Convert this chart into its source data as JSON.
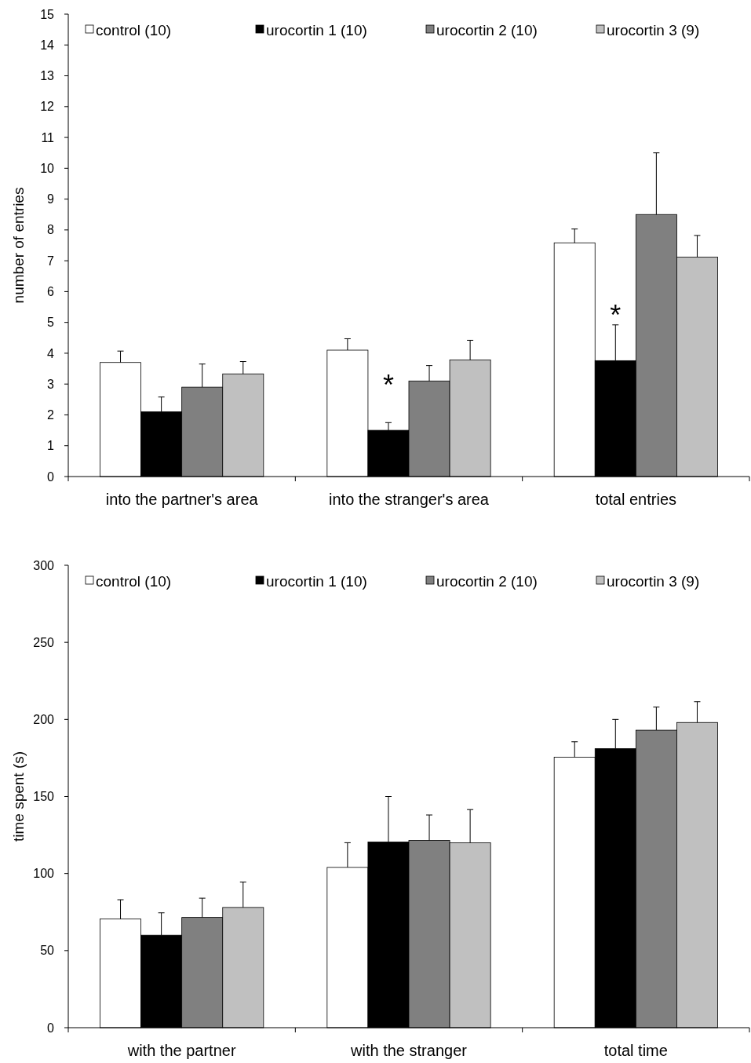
{
  "chart_data": [
    {
      "type": "bar",
      "ylabel": "number of entries",
      "categories": [
        "into the partner's area",
        "into the stranger's area",
        "total entries"
      ],
      "series": [
        {
          "name": "control (10)",
          "color": "#ffffff",
          "values": [
            3.7,
            4.1,
            7.58
          ],
          "errors": [
            0.37,
            0.37,
            0.45
          ]
        },
        {
          "name": "urocortin 1 (10)",
          "color": "#000000",
          "values": [
            2.1,
            1.5,
            3.76
          ],
          "errors": [
            0.48,
            0.25,
            1.16
          ]
        },
        {
          "name": "urocortin 2 (10)",
          "color": "#808080",
          "values": [
            2.9,
            3.1,
            8.5
          ],
          "errors": [
            0.75,
            0.5,
            2.0
          ]
        },
        {
          "name": "urocortin 3 (9)",
          "color": "#c0c0c0",
          "values": [
            3.33,
            3.78,
            7.12
          ],
          "errors": [
            0.4,
            0.64,
            0.7
          ]
        }
      ],
      "ylim": [
        0,
        15
      ],
      "yticks": [
        0,
        1,
        2,
        3,
        4,
        5,
        6,
        7,
        8,
        9,
        10,
        11,
        12,
        13,
        14,
        15
      ],
      "legend": "top",
      "annotations": [
        {
          "text": "*",
          "x": "into the stranger's area",
          "y": 1.5
        },
        {
          "text": "*",
          "x": "total entries",
          "y": 3.76
        }
      ]
    },
    {
      "type": "bar",
      "ylabel": "time spent (s)",
      "categories": [
        "with the partner",
        "with the stranger",
        "total time"
      ],
      "series": [
        {
          "name": "control (10)",
          "color": "#ffffff",
          "values": [
            70.5,
            104,
            175.5
          ],
          "errors": [
            12.5,
            16,
            10
          ]
        },
        {
          "name": "urocortin 1 (10)",
          "color": "#000000",
          "values": [
            60,
            120.5,
            181
          ],
          "errors": [
            14.5,
            29.5,
            19
          ]
        },
        {
          "name": "urocortin 2 (10)",
          "color": "#808080",
          "values": [
            71.5,
            121.5,
            193
          ],
          "errors": [
            12.5,
            16.5,
            15
          ]
        },
        {
          "name": "urocortin 3 (9)",
          "color": "#c0c0c0",
          "values": [
            78,
            120,
            198
          ],
          "errors": [
            16.5,
            21.5,
            13.5
          ]
        }
      ],
      "ylim": [
        0,
        300
      ],
      "yticks": [
        0,
        50,
        100,
        150,
        200,
        250,
        300
      ],
      "legend": "top"
    }
  ]
}
